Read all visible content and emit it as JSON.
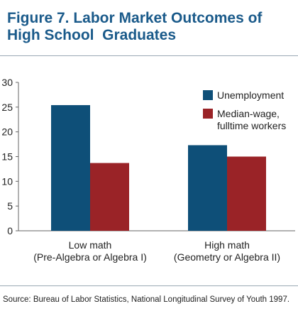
{
  "title_lines": [
    "Figure 7. Labor Market Outcomes of",
    "High School  Graduates"
  ],
  "source": "Source: Bureau of Labor Statistics, National Longitudinal Survey of Youth 1997.",
  "colors": {
    "title": "#1a5a8a",
    "unemployment": "#0e4f78",
    "median_wage": "#9a2327",
    "axis": "#666666"
  },
  "chart_data": {
    "type": "bar",
    "categories": [
      [
        "Low math",
        "(Pre-Algebra or Algebra I)"
      ],
      [
        "High math",
        "(Geometry or Algebra II)"
      ]
    ],
    "series": [
      {
        "name": "Unemployment",
        "values": [
          25.4,
          17.3
        ]
      },
      {
        "name_lines": [
          "Median-wage,",
          "fulltime workers"
        ],
        "values": [
          13.7,
          15.0
        ]
      }
    ],
    "ylim": [
      0,
      30
    ],
    "yticks": [
      "0",
      "5",
      "10",
      "15",
      "20",
      "25",
      "30"
    ],
    "legend_position": "top-right",
    "grid": false
  }
}
